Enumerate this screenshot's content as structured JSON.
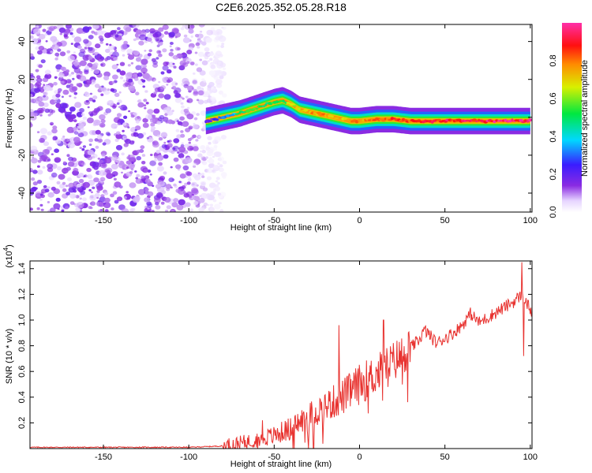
{
  "title": "C2E6.2025.352.05.28.R18",
  "chart_data": [
    {
      "type": "heatmap",
      "xlabel": "Height of straight line (km)",
      "ylabel": "Frequency (Hz)",
      "xlim": [
        -193,
        101
      ],
      "ylim": [
        -50,
        49
      ],
      "xticks": [
        -150,
        -100,
        -50,
        0,
        50,
        100
      ],
      "yticks": [
        -40,
        -20,
        0,
        20,
        40
      ],
      "xtick_labels": [
        "-150",
        "-100",
        "-50",
        "0",
        "50",
        "100"
      ],
      "ytick_labels": [
        "-40",
        "-20",
        "0",
        "20",
        "40"
      ],
      "colorbar": {
        "label": "Normalized spectral amplitude",
        "range": [
          0,
          1
        ],
        "ticks": [
          0.0,
          0.2,
          0.4,
          0.6,
          0.8
        ],
        "tick_labels": [
          "0.0",
          "0.2",
          "0.4",
          "0.6",
          "0.8"
        ],
        "colormap": "rainbow (white-purple-blue-cyan-green-yellow-red-magenta)"
      },
      "noise_region_x": [
        -193,
        -79
      ],
      "ridge": {
        "x": [
          -90,
          -80,
          -70,
          -60,
          -50,
          -45,
          -40,
          -35,
          -30,
          -25,
          -20,
          -15,
          -10,
          -5,
          0,
          10,
          20,
          30,
          40,
          50,
          60,
          70,
          80,
          90,
          95,
          100
        ],
        "freq": [
          -2,
          0,
          2,
          5,
          8,
          9,
          7,
          4,
          3,
          2,
          1,
          0,
          -1,
          -2,
          -2,
          -1,
          -1,
          -2,
          -2,
          -2,
          -2,
          -2,
          -2,
          -2,
          -2,
          -2
        ],
        "amplitude": [
          0.2,
          0.3,
          0.45,
          0.55,
          0.5,
          0.55,
          0.6,
          0.7,
          0.75,
          0.75,
          0.8,
          0.7,
          0.7,
          0.75,
          0.75,
          0.8,
          0.85,
          0.85,
          0.9,
          0.9,
          0.9,
          0.92,
          0.95,
          0.95,
          0.95,
          0.95
        ]
      }
    },
    {
      "type": "line",
      "xlabel": "Height of straight line (km)",
      "ylabel": "SNR (10 * v/v)",
      "y_multiplier": "(x10",
      "y_multiplier_exp": "4",
      "y_multiplier_close": ")",
      "xlim": [
        -193,
        101
      ],
      "ylim": [
        0,
        1.46
      ],
      "xticks": [
        -150,
        -100,
        -50,
        0,
        50,
        100
      ],
      "yticks": [
        0.2,
        0.4,
        0.6,
        0.8,
        1.0,
        1.2,
        1.4
      ],
      "xtick_labels": [
        "-150",
        "-100",
        "-50",
        "0",
        "50",
        "100"
      ],
      "ytick_labels": [
        "0.2",
        "0.4",
        "0.6",
        "0.8",
        "1.0",
        "1.2",
        "1.4"
      ],
      "color": "#e8322f",
      "series": [
        {
          "x": [
            -193,
            -150,
            -100,
            -80,
            -70,
            -60,
            -50,
            -40,
            -30,
            -20,
            -10,
            0,
            10,
            20,
            30,
            35,
            38,
            40,
            45,
            50,
            55,
            60,
            65,
            70,
            75,
            80,
            85,
            90,
            95,
            100,
            101
          ],
          "values": [
            0.01,
            0.01,
            0.01,
            0.02,
            0.04,
            0.07,
            0.1,
            0.16,
            0.25,
            0.33,
            0.4,
            0.5,
            0.58,
            0.68,
            0.78,
            0.85,
            0.92,
            0.9,
            0.82,
            0.86,
            0.9,
            0.96,
            1.05,
            0.98,
            1.02,
            1.06,
            1.1,
            1.14,
            1.2,
            1.08,
            1.06
          ]
        }
      ],
      "spikes": [
        {
          "x": -12,
          "value": 0.96
        },
        {
          "x": 14,
          "value": 1.0
        },
        {
          "x": 95,
          "value": 1.45
        },
        {
          "x": 96,
          "value": 0.72
        },
        {
          "x": -57,
          "value": 0.22
        }
      ]
    }
  ]
}
